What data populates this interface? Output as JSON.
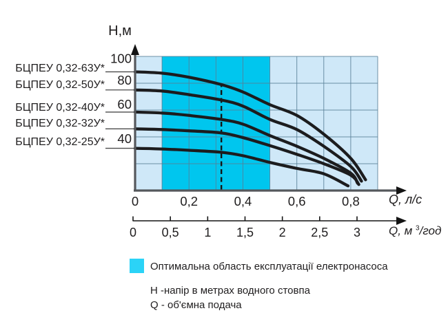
{
  "colors": {
    "plot_background": "#cfe8f8",
    "optimal_region": "#00c6ee",
    "legend_swatch": "#2bd3f7",
    "grid_line": "#587f97",
    "axis": "#55585c",
    "curve": "#1c1c1e",
    "arrow": "#141414",
    "text": "#1f1d1e"
  },
  "chart_data": {
    "type": "line",
    "title": "",
    "y_axis": {
      "label": "Н,м",
      "ticks": [
        "100",
        "80",
        "60",
        "40"
      ],
      "tick_values": [
        100,
        80,
        60,
        40
      ],
      "range": [
        0,
        100
      ],
      "grid_step": 20
    },
    "x_axis_primary": {
      "label": "Q, л/с",
      "ticks": [
        "0",
        "0,2",
        "0,4",
        "0,6",
        "0,8"
      ],
      "tick_values": [
        0,
        0.2,
        0.4,
        0.6,
        0.8
      ],
      "range": [
        0,
        0.9
      ],
      "grid_step": 0.1
    },
    "x_axis_secondary": {
      "label_prefix": "Q, м ",
      "label_sup": "3",
      "label_suffix": "/год",
      "ticks": [
        "0",
        "0,5",
        "1",
        "1,5",
        "2",
        "2,5",
        "3"
      ],
      "tick_values": [
        0,
        0.5,
        1,
        1.5,
        2,
        2.5,
        3
      ],
      "range": [
        0,
        3.25
      ]
    },
    "grid": true,
    "legend_position": "bottom",
    "series": [
      {
        "name": "БЦПЕУ 0,32-63У*",
        "points": [
          [
            0,
            88.5
          ],
          [
            0.1,
            87.5
          ],
          [
            0.2,
            84.5
          ],
          [
            0.32,
            79
          ],
          [
            0.4,
            73.5
          ],
          [
            0.5,
            64
          ],
          [
            0.6,
            56
          ],
          [
            0.7,
            42
          ],
          [
            0.8,
            24
          ],
          [
            0.855,
            8
          ]
        ]
      },
      {
        "name": "БЦПЕУ 0,32-50У*",
        "points": [
          [
            0,
            75
          ],
          [
            0.1,
            74.2
          ],
          [
            0.2,
            71.5
          ],
          [
            0.32,
            67.5
          ],
          [
            0.4,
            63
          ],
          [
            0.5,
            53
          ],
          [
            0.6,
            45.5
          ],
          [
            0.7,
            33
          ],
          [
            0.8,
            18
          ],
          [
            0.84,
            7
          ]
        ]
      },
      {
        "name": "БЦПЕУ 0,32-40У*",
        "points": [
          [
            0,
            58.5
          ],
          [
            0.1,
            57.8
          ],
          [
            0.2,
            56
          ],
          [
            0.32,
            53
          ],
          [
            0.4,
            49.5
          ],
          [
            0.5,
            41
          ],
          [
            0.6,
            33
          ],
          [
            0.7,
            24
          ],
          [
            0.8,
            13
          ],
          [
            0.825,
            5.5
          ]
        ]
      },
      {
        "name": "БЦПЕУ 0,32-32У*",
        "points": [
          [
            0,
            46
          ],
          [
            0.1,
            45.5
          ],
          [
            0.2,
            44.5
          ],
          [
            0.32,
            43
          ],
          [
            0.4,
            39.5
          ],
          [
            0.5,
            33.5
          ],
          [
            0.6,
            27
          ],
          [
            0.7,
            20
          ],
          [
            0.8,
            11.5
          ],
          [
            0.83,
            4.5
          ]
        ]
      },
      {
        "name": "БЦПЕУ 0,32-25У*",
        "points": [
          [
            0,
            31.5
          ],
          [
            0.1,
            31
          ],
          [
            0.2,
            30
          ],
          [
            0.32,
            28.5
          ],
          [
            0.4,
            26
          ],
          [
            0.5,
            21
          ],
          [
            0.6,
            16.5
          ],
          [
            0.7,
            12.5
          ],
          [
            0.79,
            3.5
          ]
        ]
      }
    ],
    "optimal_region": {
      "q_min": 0.1,
      "q_max": 0.5
    },
    "nominal_flow_line": {
      "q": 0.32,
      "style": "dashed"
    }
  },
  "legend": {
    "optimal_text": "Оптимальна область експлуатації електронасоса",
    "note_h": "Н -напір в метрах водного стовпа",
    "note_q": "Q - об'ємна подача"
  }
}
